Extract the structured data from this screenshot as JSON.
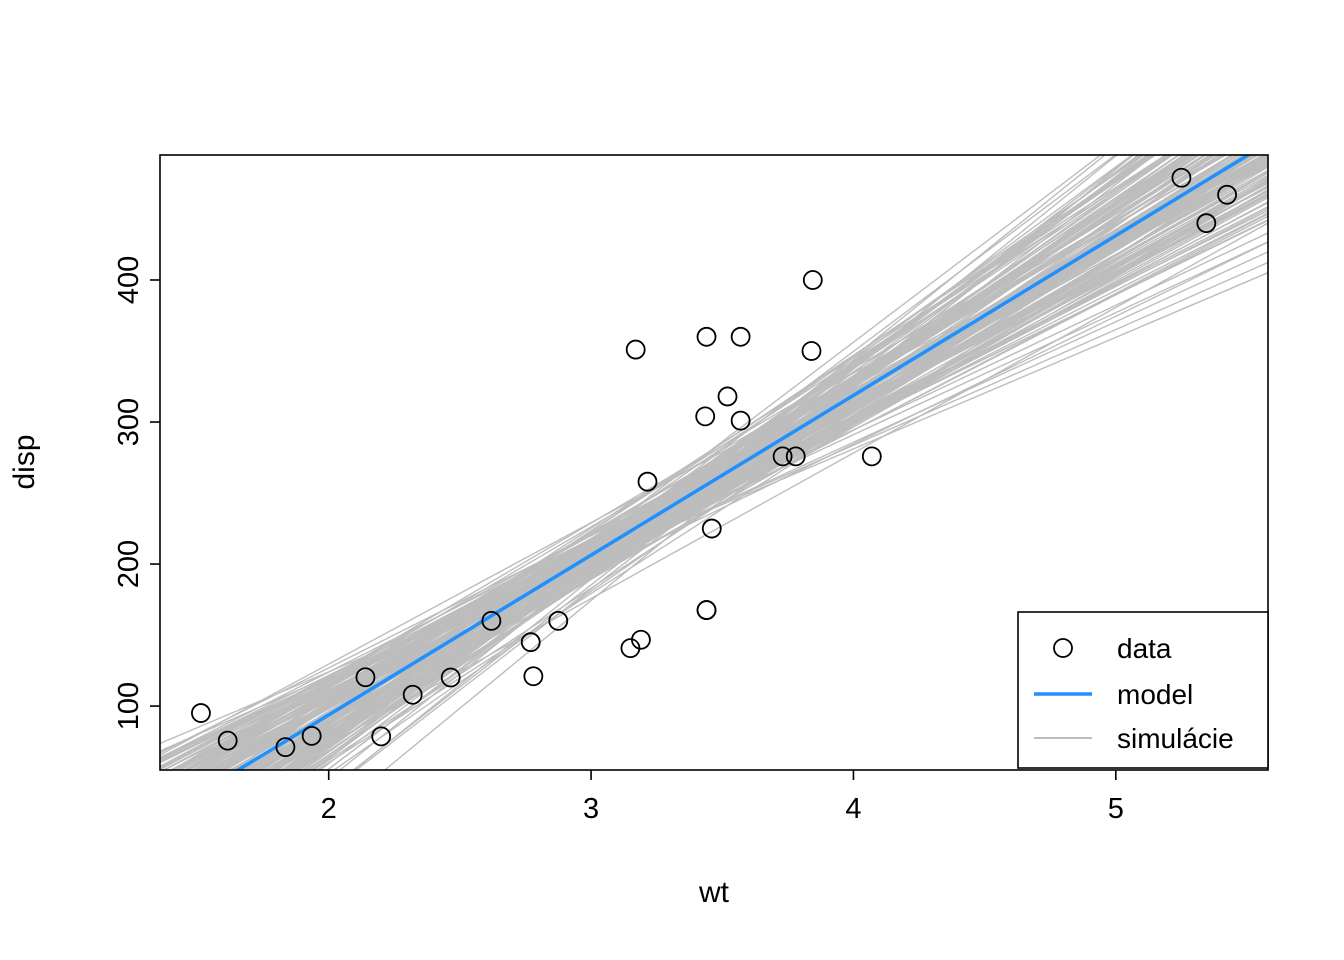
{
  "chart_data": {
    "type": "scatter",
    "title": "",
    "xlabel": "wt",
    "ylabel": "disp",
    "x_domain": [
      1.357,
      5.58
    ],
    "y_domain": [
      55,
      488
    ],
    "x_ticks": [
      2,
      3,
      4,
      5
    ],
    "y_ticks": [
      100,
      200,
      300,
      400
    ],
    "grid": false,
    "point_style": {
      "shape": "open-circle",
      "color": "#000000",
      "radius": 9
    },
    "points": [
      [
        2.62,
        160
      ],
      [
        2.875,
        160
      ],
      [
        2.32,
        108
      ],
      [
        3.215,
        258
      ],
      [
        3.44,
        360
      ],
      [
        3.46,
        225
      ],
      [
        3.57,
        360
      ],
      [
        3.19,
        146.7
      ],
      [
        3.15,
        140.8
      ],
      [
        3.44,
        167.6
      ],
      [
        3.44,
        167.6
      ],
      [
        4.07,
        275.8
      ],
      [
        3.73,
        275.8
      ],
      [
        3.78,
        275.8
      ],
      [
        5.25,
        472
      ],
      [
        5.424,
        460
      ],
      [
        5.345,
        440
      ],
      [
        2.2,
        78.7
      ],
      [
        1.615,
        75.7
      ],
      [
        1.835,
        71.1
      ],
      [
        2.465,
        120.1
      ],
      [
        3.52,
        318
      ],
      [
        3.435,
        304
      ],
      [
        3.84,
        350
      ],
      [
        3.845,
        400
      ],
      [
        1.935,
        79
      ],
      [
        2.14,
        120.3
      ],
      [
        1.513,
        95.1
      ],
      [
        3.17,
        351
      ],
      [
        2.77,
        145
      ],
      [
        3.57,
        301
      ],
      [
        2.78,
        121
      ]
    ],
    "model": {
      "type": "linear",
      "intercept": -131.15,
      "slope": 112.48,
      "color": "#1E90FF",
      "stroke_width": 3.5
    },
    "simulations": {
      "count": 160,
      "slope_sd": 15,
      "intercept_sd": 10,
      "pivot_x": 3.217,
      "pivot_y": 230.72,
      "color": "#BDBDBD",
      "stroke_width": 1.4,
      "seed": 42
    },
    "legend": {
      "position": "bottom-right",
      "items": [
        {
          "label": "data",
          "type": "point",
          "color": "#000000"
        },
        {
          "label": "model",
          "type": "line",
          "color": "#1E90FF"
        },
        {
          "label": "simulácie",
          "type": "line",
          "color": "#BDBDBD"
        }
      ]
    }
  }
}
